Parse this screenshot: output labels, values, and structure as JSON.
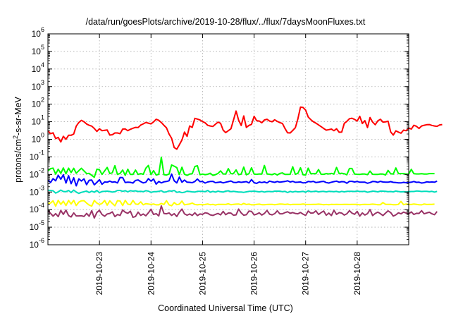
{
  "chart_data": {
    "type": "line",
    "title": "/data/run/goesPlots/archive/2019-10-28/flux/../flux/7daysMoonFluxes.txt",
    "xlabel": "Coordinated Universal Time (UTC)",
    "ylabel_main": "protons/cm",
    "ylabel_sup": "2",
    "ylabel_rest": "-s-sr-MeV",
    "x_tick_labels": [
      "2019-10-23",
      "2019-10-24",
      "2019-10-25",
      "2019-10-26",
      "2019-10-27",
      "2019-10-28"
    ],
    "x_tick_days": [
      23,
      24,
      25,
      26,
      27,
      28
    ],
    "xlim_days": [
      22.0,
      29.0
    ],
    "yscale": "log",
    "y_tick_exponents": [
      -6,
      -5,
      -4,
      -3,
      -2,
      -1,
      0,
      1,
      2,
      3,
      4,
      5,
      6
    ],
    "ylim_log10": [
      -6,
      6
    ],
    "grid": true,
    "x_step_days": 0.05,
    "series": [
      {
        "color": "#ff0000",
        "log10_values": [
          0.49,
          0.32,
          0.37,
          0.04,
          0.11,
          -0.15,
          0.17,
          0.0,
          0.23,
          0.23,
          0.3,
          0.75,
          0.96,
          1.08,
          1.0,
          0.87,
          0.8,
          0.75,
          0.62,
          0.45,
          0.6,
          0.49,
          0.51,
          0.53,
          0.24,
          0.26,
          0.36,
          0.36,
          0.32,
          0.58,
          0.59,
          0.49,
          0.57,
          0.63,
          0.68,
          0.67,
          0.81,
          0.88,
          0.96,
          0.92,
          0.88,
          0.99,
          1.14,
          1.08,
          0.96,
          0.8,
          0.66,
          0.3,
          0.06,
          -0.47,
          -0.56,
          -0.31,
          -0.04,
          0.41,
          0.17,
          0.76,
          0.68,
          1.19,
          1.15,
          1.1,
          1.01,
          0.94,
          0.8,
          0.76,
          0.73,
          0.86,
          0.98,
          0.91,
          0.52,
          0.38,
          0.49,
          0.6,
          1.09,
          1.61,
          1.09,
          0.79,
          1.33,
          0.68,
          0.79,
          0.85,
          1.31,
          1.06,
          1.04,
          0.94,
          1.1,
          1.14,
          1.04,
          1.0,
          1.11,
          1.02,
          0.95,
          0.9,
          0.61,
          0.37,
          0.36,
          0.5,
          0.66,
          1.16,
          1.83,
          1.81,
          1.66,
          1.27,
          1.12,
          1.0,
          0.92,
          0.82,
          0.72,
          0.62,
          0.52,
          0.55,
          0.58,
          0.49,
          0.6,
          0.4,
          0.41,
          0.91,
          1.02,
          1.17,
          1.2,
          1.13,
          1.04,
          1.31,
          0.9,
          1.06,
          0.67,
          1.24,
          0.98,
          0.83,
          1.05,
          1.14,
          0.98,
          0.99,
          1.03,
          0.42,
          0.24,
          0.48,
          0.41,
          0.35,
          0.52,
          0.49,
          0.64,
          0.58,
          0.8,
          0.74,
          0.62,
          0.76,
          0.8,
          0.83,
          0.84,
          0.79,
          0.76,
          0.74,
          0.82,
          0.84
        ]
      },
      {
        "color": "#00ff00",
        "log10_values": [
          -1.8,
          -1.67,
          -1.64,
          -1.98,
          -1.7,
          -1.94,
          -1.63,
          -1.96,
          -1.64,
          -1.89,
          -1.65,
          -1.93,
          -1.78,
          -1.65,
          -1.8,
          -1.95,
          -1.94,
          -2.05,
          -2.16,
          -1.7,
          -1.73,
          -2.0,
          -1.8,
          -1.6,
          -1.95,
          -1.9,
          -1.5,
          -2.0,
          -1.94,
          -1.75,
          -2.05,
          -1.7,
          -2.0,
          -2.0,
          -1.75,
          -2.0,
          -1.95,
          -1.99,
          -1.64,
          -1.49,
          -2.01,
          -1.78,
          -2.03,
          -1.99,
          -1.02,
          -2.01,
          -2.03,
          -1.98,
          -1.46,
          -1.53,
          -1.61,
          -2.01,
          -1.59,
          -1.99,
          -2.05,
          -1.98,
          -1.96,
          -1.55,
          -1.5,
          -2.01,
          -1.98,
          -2.01,
          -1.99,
          -1.93,
          -2.05,
          -2.01,
          -1.94,
          -1.8,
          -1.97,
          -1.98,
          -1.67,
          -1.96,
          -1.95,
          -1.74,
          -2.01,
          -1.98,
          -1.58,
          -2.02,
          -1.95,
          -1.62,
          -1.98,
          -1.99,
          -1.97,
          -1.98,
          -1.49,
          -1.97,
          -1.99,
          -2.01,
          -1.95,
          -2.03,
          -1.94,
          -1.91,
          -2.0,
          -2.0,
          -1.99,
          -1.56,
          -1.99,
          -1.94,
          -1.62,
          -2.02,
          -2.03,
          -1.64,
          -1.96,
          -1.95,
          -1.96,
          -1.72,
          -1.99,
          -1.99,
          -1.95,
          -1.97,
          -1.94,
          -1.98,
          -1.6,
          -1.95,
          -1.93,
          -1.96,
          -2.02,
          -1.66,
          -1.66,
          -1.98,
          -1.99,
          -2.0,
          -1.97,
          -1.98,
          -2.01,
          -1.81,
          -1.99,
          -2.0,
          -2.0,
          -1.97,
          -1.98,
          -2.03,
          -1.77,
          -1.96,
          -1.98,
          -1.63,
          -1.95,
          -1.95,
          -1.95,
          -1.98,
          -1.97,
          -1.71,
          -1.96,
          -1.97,
          -1.97,
          -1.96,
          -1.98,
          -1.98,
          -1.95,
          -1.95,
          -1.95
        ]
      },
      {
        "color": "#0000ff",
        "log10_values": [
          -2.31,
          -2.46,
          -2.24,
          -2.36,
          -2.05,
          -2.27,
          -2.02,
          -2.49,
          -2.07,
          -2.53,
          -2.19,
          -2.65,
          -2.25,
          -2.37,
          -2.25,
          -2.58,
          -2.33,
          -2.32,
          -2.59,
          -2.45,
          -2.3,
          -2.56,
          -2.43,
          -2.44,
          -2.38,
          -2.44,
          -2.42,
          -2.48,
          -2.17,
          -2.18,
          -2.46,
          -2.44,
          -2.45,
          -2.49,
          -2.34,
          -2.31,
          -2.41,
          -2.48,
          -2.44,
          -2.24,
          -2.38,
          -2.26,
          -2.55,
          -2.4,
          -2.48,
          -2.42,
          -2.4,
          -2.36,
          -1.98,
          -2.36,
          -2.48,
          -2.15,
          -2.44,
          -2.32,
          -2.44,
          -2.45,
          -2.47,
          -2.4,
          -2.26,
          -2.41,
          -2.4,
          -2.49,
          -2.43,
          -2.4,
          -2.39,
          -2.47,
          -2.45,
          -2.43,
          -2.48,
          -2.44,
          -2.41,
          -2.37,
          -2.45,
          -2.46,
          -2.42,
          -2.45,
          -2.43,
          -2.41,
          -2.48,
          -2.29,
          -2.47,
          -2.51,
          -2.43,
          -2.46,
          -2.43,
          -2.48,
          -2.38,
          -2.42,
          -2.45,
          -2.4,
          -2.44,
          -2.42,
          -2.4,
          -2.36,
          -2.43,
          -2.39,
          -2.45,
          -2.44,
          -2.43,
          -2.48,
          -2.47,
          -2.4,
          -2.42,
          -2.39,
          -2.46,
          -2.44,
          -2.41,
          -2.39,
          -2.46,
          -2.49,
          -2.44,
          -2.41,
          -2.38,
          -2.44,
          -2.41,
          -2.42,
          -2.5,
          -2.39,
          -2.39,
          -2.43,
          -2.4,
          -2.44,
          -2.44,
          -2.44,
          -2.5,
          -2.46,
          -2.4,
          -2.41,
          -2.45,
          -2.39,
          -2.43,
          -2.44,
          -2.44,
          -2.41,
          -2.45,
          -2.46,
          -2.48,
          -2.48,
          -2.45,
          -2.47,
          -2.46,
          -2.44,
          -2.4,
          -2.45,
          -2.44,
          -2.49,
          -2.47,
          -2.42,
          -2.44,
          -2.43,
          -2.44,
          -2.38
        ]
      },
      {
        "color": "#00ddbb",
        "log10_values": [
          -2.9,
          -2.91,
          -2.93,
          -3.06,
          -2.99,
          -2.89,
          -2.97,
          -2.98,
          -2.91,
          -3.03,
          -2.89,
          -3.0,
          -3.08,
          -3.02,
          -2.98,
          -2.94,
          -3.03,
          -2.95,
          -3.01,
          -2.91,
          -3.04,
          -2.97,
          -2.96,
          -2.95,
          -2.97,
          -3.0,
          -2.98,
          -2.91,
          -2.91,
          -2.96,
          -2.92,
          -2.99,
          -2.92,
          -2.95,
          -2.93,
          -2.97,
          -2.96,
          -2.98,
          -2.92,
          -2.95,
          -3.02,
          -2.98,
          -2.98,
          -2.96,
          -2.92,
          -3.01,
          -2.99,
          -2.93,
          -2.95,
          -2.91,
          -3.02,
          -2.99,
          -3.04,
          -3.01,
          -2.95,
          -2.97,
          -2.99,
          -3.0,
          -2.96,
          -2.96,
          -2.96,
          -2.98,
          -2.91,
          -3.01,
          -2.96,
          -3.0,
          -2.95,
          -2.98,
          -3.0,
          -2.95,
          -2.93,
          -2.98,
          -2.96,
          -2.98,
          -3.0,
          -3.0,
          -3.02,
          -2.99,
          -2.96,
          -2.96,
          -2.95,
          -2.97,
          -2.99,
          -2.96,
          -3.0,
          -2.97,
          -2.97,
          -2.98,
          -2.95,
          -2.95,
          -2.95,
          -2.98,
          -2.96,
          -3.03,
          -2.96,
          -3.0,
          -2.96,
          -2.99,
          -2.98,
          -2.96,
          -3.01,
          -2.93,
          -2.98,
          -2.97,
          -2.95,
          -2.99,
          -2.97,
          -2.96,
          -2.99,
          -2.96,
          -2.97,
          -2.98,
          -2.96,
          -3.0,
          -2.96,
          -2.99,
          -2.96,
          -2.96,
          -2.96,
          -2.97,
          -2.94,
          -2.97,
          -2.97,
          -2.96,
          -3.01,
          -2.98,
          -2.95,
          -2.96,
          -2.99,
          -2.95,
          -2.95,
          -2.96,
          -2.98,
          -2.97,
          -2.99,
          -2.94,
          -2.97,
          -2.99,
          -2.98,
          -3.0,
          -2.98,
          -2.97,
          -2.97,
          -2.94,
          -2.95,
          -2.97,
          -2.96,
          -2.96,
          -2.98,
          -2.96,
          -3.0,
          -2.96
        ]
      },
      {
        "color": "#ffff00",
        "log10_values": [
          -3.65,
          -3.63,
          -3.5,
          -3.8,
          -3.47,
          -3.7,
          -3.52,
          -3.77,
          -3.48,
          -3.68,
          -3.47,
          -3.77,
          -3.57,
          -3.5,
          -3.49,
          -3.63,
          -3.74,
          -3.8,
          -3.48,
          -3.63,
          -3.71,
          -3.65,
          -3.48,
          -3.75,
          -3.5,
          -3.65,
          -3.78,
          -3.49,
          -3.51,
          -3.77,
          -3.47,
          -3.69,
          -3.72,
          -3.48,
          -3.68,
          -3.7,
          -3.56,
          -3.73,
          -3.66,
          -3.68,
          -3.71,
          -3.68,
          -3.73,
          -3.73,
          -3.65,
          -3.71,
          -3.49,
          -3.73,
          -3.78,
          -3.6,
          -3.72,
          -3.69,
          -3.51,
          -3.73,
          -3.7,
          -3.68,
          -3.63,
          -3.71,
          -3.73,
          -3.71,
          -3.73,
          -3.71,
          -3.68,
          -3.72,
          -3.7,
          -3.74,
          -3.7,
          -3.7,
          -3.7,
          -3.71,
          -3.67,
          -3.72,
          -3.7,
          -3.69,
          -3.68,
          -3.72,
          -3.65,
          -3.71,
          -3.69,
          -3.73,
          -3.72,
          -3.7,
          -3.69,
          -3.72,
          -3.72,
          -3.71,
          -3.7,
          -3.7,
          -3.72,
          -3.7,
          -3.68,
          -3.69,
          -3.71,
          -3.69,
          -3.72,
          -3.7,
          -3.7,
          -3.7,
          -3.7,
          -3.68,
          -3.7,
          -3.71,
          -3.71,
          -3.7,
          -3.7,
          -3.69,
          -3.7,
          -3.72,
          -3.71,
          -3.72,
          -3.7,
          -3.71,
          -3.7,
          -3.71,
          -3.71,
          -3.7,
          -3.7,
          -3.71,
          -3.7,
          -3.7,
          -3.7,
          -3.73,
          -3.71,
          -3.7,
          -3.71,
          -3.7,
          -3.69,
          -3.7,
          -3.72,
          -3.72,
          -3.6,
          -3.7,
          -3.7,
          -3.7,
          -3.72,
          -3.72,
          -3.7,
          -3.53,
          -3.72,
          -3.68,
          -3.7,
          -3.71,
          -3.68,
          -3.7,
          -3.72,
          -3.73,
          -3.68,
          -3.71,
          -3.7,
          -3.7,
          -3.69
        ]
      },
      {
        "color": "#993366",
        "log10_values": [
          -4.06,
          -4.21,
          -4.37,
          -4.23,
          -4.4,
          -4.05,
          -4.27,
          -4.03,
          -4.34,
          -4.42,
          -4.19,
          -4.36,
          -4.36,
          -4.35,
          -4.39,
          -4.22,
          -4.38,
          -4.06,
          -4.48,
          -4.16,
          -4.04,
          -4.28,
          -4.38,
          -4.25,
          -4.22,
          -4.13,
          -4.4,
          -4.28,
          -4.33,
          -4.02,
          -4.15,
          -4.21,
          -4.09,
          -4.44,
          -4.39,
          -4.14,
          -4.33,
          -4.25,
          -4.35,
          -4.18,
          -3.98,
          -4.28,
          -4.23,
          -4.36,
          -3.79,
          -4.22,
          -4.24,
          -4.19,
          -4.33,
          -4.23,
          -4.39,
          -4.15,
          -3.97,
          -4.24,
          -4.32,
          -4.25,
          -4.33,
          -4.18,
          -4.34,
          -4.25,
          -4.27,
          -4.18,
          -4.21,
          -4.3,
          -4.33,
          -4.27,
          -4.22,
          -4.3,
          -4.1,
          -4.29,
          -4.19,
          -4.2,
          -4.32,
          -4.3,
          -3.97,
          -4.19,
          -4.32,
          -4.29,
          -4.08,
          -4.1,
          -4.3,
          -4.26,
          -4.18,
          -4.31,
          -4.22,
          -4.05,
          -4.26,
          -4.3,
          -4.23,
          -4.07,
          -4.24,
          -4.24,
          -4.17,
          -4.12,
          -4.21,
          -4.17,
          -4.22,
          -4.24,
          -4.16,
          -4.26,
          -4.33,
          -4.08,
          -4.2,
          -4.19,
          -4.07,
          -4.28,
          -4.17,
          -4.08,
          -4.32,
          -4.2,
          -4.34,
          -4.04,
          -4.27,
          -4.17,
          -4.2,
          -4.31,
          -4.24,
          -4.06,
          -4.2,
          -4.27,
          -4.1,
          -4.37,
          -4.19,
          -4.31,
          -4.23,
          -4.0,
          -4.34,
          -4.22,
          -4.14,
          -4.23,
          -4.34,
          -4.2,
          -4.07,
          -4.17,
          -4.37,
          -4.3,
          -4.18,
          -4.24,
          -4.14,
          -4.2,
          -4.24,
          -4.13,
          -4.28,
          -4.21,
          -4.22,
          -4.06,
          -4.24,
          -4.19,
          -4.15,
          -4.24,
          -4.29,
          -4.11
        ]
      }
    ]
  }
}
